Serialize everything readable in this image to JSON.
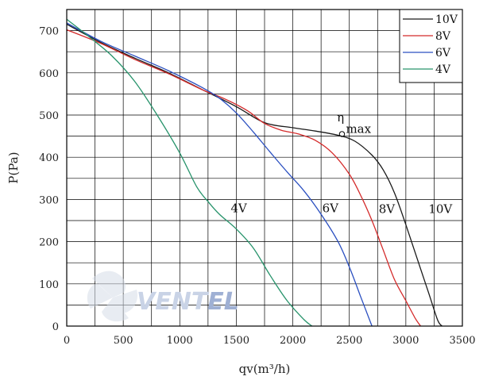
{
  "chart_data": {
    "type": "line",
    "title": "",
    "xlabel": "qv(m³/h)",
    "ylabel": "P(Pa)",
    "xlim": [
      0,
      3500
    ],
    "ylim": [
      0,
      750
    ],
    "grid": true,
    "legend_position": "top-right",
    "x_ticks": [
      "0",
      "500",
      "1000",
      "1500",
      "2000",
      "2500",
      "3000",
      "3500"
    ],
    "y_ticks": [
      "0",
      "100",
      "200",
      "300",
      "400",
      "500",
      "600",
      "700"
    ],
    "series": [
      {
        "name": "10V",
        "color": "#1a1a1a",
        "points": [
          [
            0,
            715
          ],
          [
            300,
            672
          ],
          [
            600,
            635
          ],
          [
            900,
            600
          ],
          [
            1200,
            560
          ],
          [
            1500,
            520
          ],
          [
            1750,
            482
          ],
          [
            2000,
            470
          ],
          [
            2200,
            462
          ],
          [
            2400,
            452
          ],
          [
            2550,
            438
          ],
          [
            2700,
            405
          ],
          [
            2800,
            370
          ],
          [
            2900,
            315
          ],
          [
            3000,
            240
          ],
          [
            3100,
            160
          ],
          [
            3200,
            80
          ],
          [
            3280,
            15
          ],
          [
            3320,
            0
          ]
        ]
      },
      {
        "name": "8V",
        "color": "#d42a2a",
        "points": [
          [
            0,
            702
          ],
          [
            300,
            670
          ],
          [
            600,
            632
          ],
          [
            900,
            598
          ],
          [
            1200,
            560
          ],
          [
            1400,
            538
          ],
          [
            1600,
            510
          ],
          [
            1750,
            480
          ],
          [
            1900,
            464
          ],
          [
            2050,
            455
          ],
          [
            2200,
            440
          ],
          [
            2350,
            410
          ],
          [
            2500,
            360
          ],
          [
            2600,
            310
          ],
          [
            2700,
            250
          ],
          [
            2800,
            180
          ],
          [
            2900,
            110
          ],
          [
            3000,
            60
          ],
          [
            3080,
            20
          ],
          [
            3130,
            0
          ]
        ]
      },
      {
        "name": "6V",
        "color": "#2a4fc0",
        "points": [
          [
            0,
            718
          ],
          [
            300,
            675
          ],
          [
            600,
            640
          ],
          [
            900,
            605
          ],
          [
            1200,
            565
          ],
          [
            1350,
            540
          ],
          [
            1500,
            505
          ],
          [
            1650,
            460
          ],
          [
            1800,
            412
          ],
          [
            1950,
            365
          ],
          [
            2100,
            320
          ],
          [
            2250,
            265
          ],
          [
            2400,
            200
          ],
          [
            2500,
            140
          ],
          [
            2600,
            70
          ],
          [
            2700,
            0
          ]
        ]
      },
      {
        "name": "4V",
        "color": "#27936b",
        "points": [
          [
            0,
            727
          ],
          [
            200,
            685
          ],
          [
            400,
            640
          ],
          [
            600,
            580
          ],
          [
            800,
            500
          ],
          [
            1000,
            410
          ],
          [
            1150,
            330
          ],
          [
            1250,
            295
          ],
          [
            1350,
            265
          ],
          [
            1500,
            230
          ],
          [
            1650,
            185
          ],
          [
            1800,
            120
          ],
          [
            1950,
            60
          ],
          [
            2100,
            15
          ],
          [
            2170,
            0
          ]
        ]
      }
    ],
    "annotations": [
      {
        "text": "10V",
        "x": 3200,
        "y": 268
      },
      {
        "text": "8V",
        "x": 2760,
        "y": 268
      },
      {
        "text": "6V",
        "x": 2260,
        "y": 270
      },
      {
        "text": "4V",
        "x": 1450,
        "y": 270
      },
      {
        "text": "η",
        "x": 2390,
        "y": 485
      },
      {
        "text": "max",
        "x": 2470,
        "y": 458
      }
    ],
    "eta_max_point": {
      "x": 2435,
      "y": 455
    }
  },
  "watermark": {
    "text_a": "VENT",
    "text_b": "EL"
  }
}
